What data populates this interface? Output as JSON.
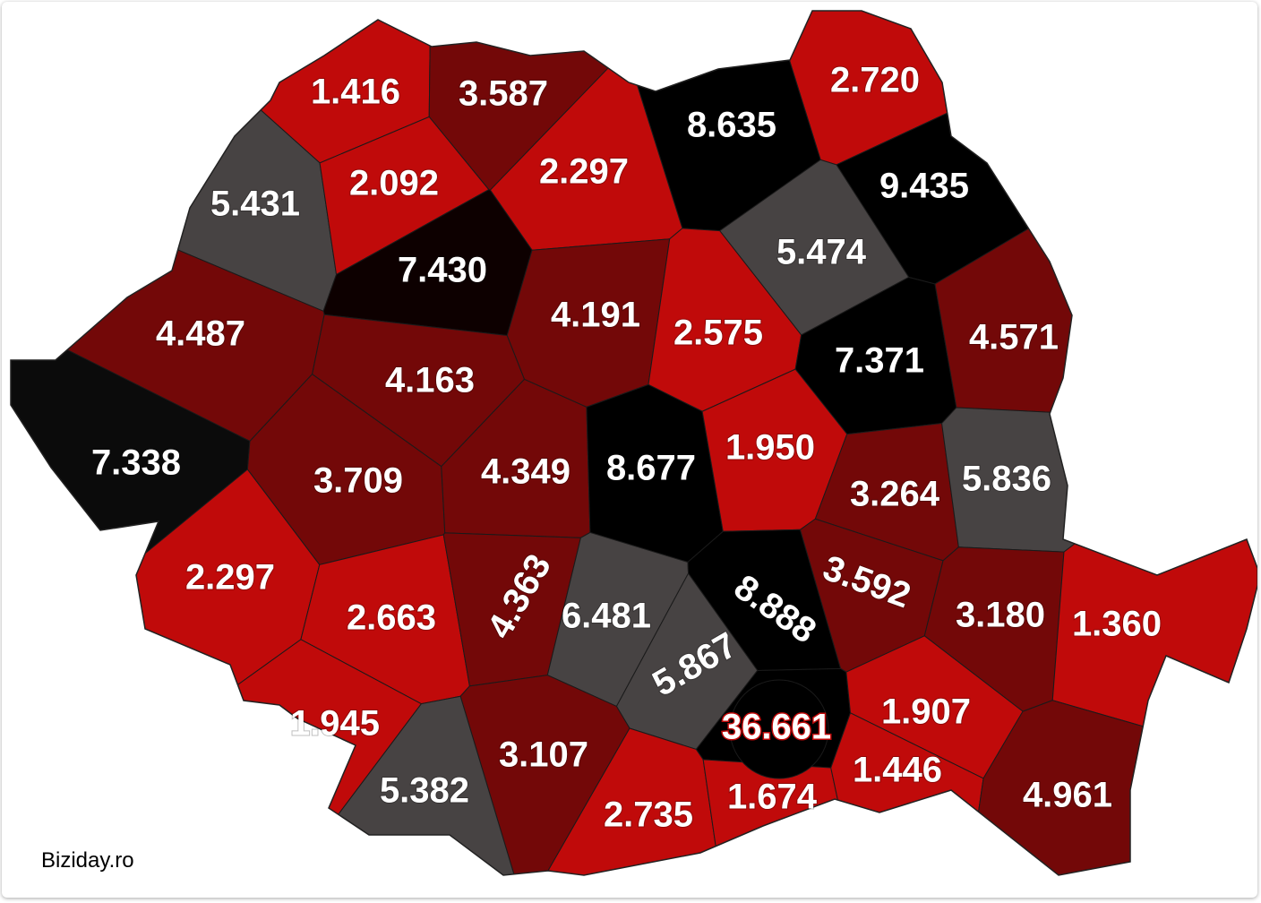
{
  "source": "Biziday.ro",
  "regions": [
    {
      "label": "1.416",
      "color": "#c00a0a"
    },
    {
      "label": "3.587",
      "color": "#730808"
    },
    {
      "label": "2.720",
      "color": "#c00a0a"
    },
    {
      "label": "8.635",
      "color": "#000000"
    },
    {
      "label": "9.435",
      "color": "#000000"
    },
    {
      "label": "5.431",
      "color": "#474343"
    },
    {
      "label": "2.092",
      "color": "#c00a0a"
    },
    {
      "label": "2.297",
      "color": "#c00a0a"
    },
    {
      "label": "7.430",
      "color": "#0d0000"
    },
    {
      "label": "5.474",
      "color": "#474343"
    },
    {
      "label": "4.487",
      "color": "#730808"
    },
    {
      "label": "4.191",
      "color": "#730808"
    },
    {
      "label": "2.575",
      "color": "#c00a0a"
    },
    {
      "label": "7.371",
      "color": "#000000"
    },
    {
      "label": "4.571",
      "color": "#730808"
    },
    {
      "label": "4.163",
      "color": "#730808"
    },
    {
      "label": "7.338",
      "color": "#0b0b0b"
    },
    {
      "label": "3.709",
      "color": "#730808"
    },
    {
      "label": "4.349",
      "color": "#730808"
    },
    {
      "label": "8.677",
      "color": "#000000"
    },
    {
      "label": "1.950",
      "color": "#c00a0a"
    },
    {
      "label": "3.264",
      "color": "#730808"
    },
    {
      "label": "5.836",
      "color": "#474343"
    },
    {
      "label": "2.297",
      "color": "#c00a0a"
    },
    {
      "label": "2.663",
      "color": "#c00a0a"
    },
    {
      "label": "4.363",
      "color": "#730808"
    },
    {
      "label": "6.481",
      "color": "#474343"
    },
    {
      "label": "8.888",
      "color": "#000000"
    },
    {
      "label": "3.592",
      "color": "#730808"
    },
    {
      "label": "3.180",
      "color": "#730808"
    },
    {
      "label": "1.360",
      "color": "#c00a0a"
    },
    {
      "label": "5.867",
      "color": "#474343"
    },
    {
      "label": "1.945",
      "color": "#c00a0a"
    },
    {
      "label": "36.661",
      "color": "#000000"
    },
    {
      "label": "1.907",
      "color": "#c00a0a"
    },
    {
      "label": "3.107",
      "color": "#730808"
    },
    {
      "label": "5.382",
      "color": "#474343"
    },
    {
      "label": "2.735",
      "color": "#c00a0a"
    },
    {
      "label": "1.674",
      "color": "#c00a0a"
    },
    {
      "label": "1.446",
      "color": "#c00a0a"
    },
    {
      "label": "4.961",
      "color": "#730808"
    }
  ]
}
